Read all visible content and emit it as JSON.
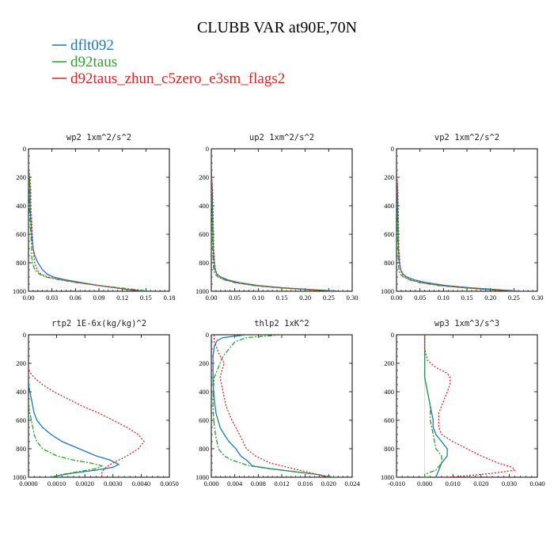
{
  "title": "CLUBB VAR at90E,70N",
  "colors": {
    "dflt092": "#1f77b4",
    "d92taus": "#2ca02c",
    "d92taus_zhun_c5zero_e3sm_flags2": "#d62728"
  },
  "legend": [
    {
      "label": "dflt092",
      "color": "#1f77b4",
      "dash": "solid"
    },
    {
      "label": "d92taus",
      "color": "#2ca02c",
      "dash": "dashed"
    },
    {
      "label": "d92taus_zhun_c5zero_e3sm_flags2",
      "color": "#d62728",
      "dash": "dotted"
    }
  ],
  "chart_data": [
    {
      "type": "line",
      "title": "wp2  1xm^2/s^2",
      "xlim": [
        0,
        0.18
      ],
      "ylim": [
        1000,
        0
      ],
      "xticks": [
        "0.00",
        "0.03",
        "0.06",
        "0.09",
        "0.12",
        "0.15",
        "0.18"
      ],
      "yticks": [
        "0",
        "200",
        "400",
        "600",
        "800",
        "1000"
      ],
      "series": [
        {
          "name": "dflt092",
          "y": [
            150,
            200,
            300,
            400,
            500,
            600,
            700,
            750,
            800,
            850,
            880,
            900,
            920,
            940,
            960,
            975,
            990,
            1000
          ],
          "x": [
            0.0,
            0.001,
            0.002,
            0.002,
            0.003,
            0.004,
            0.006,
            0.008,
            0.012,
            0.018,
            0.024,
            0.032,
            0.048,
            0.068,
            0.09,
            0.11,
            0.13,
            0.15
          ]
        },
        {
          "name": "d92taus",
          "y": [
            150,
            200,
            300,
            400,
            500,
            600,
            700,
            750,
            800,
            850,
            880,
            900,
            920,
            940,
            960,
            975,
            990,
            1000
          ],
          "x": [
            0.0,
            0.0,
            0.001,
            0.001,
            0.002,
            0.003,
            0.004,
            0.004,
            0.005,
            0.008,
            0.014,
            0.022,
            0.04,
            0.062,
            0.09,
            0.115,
            0.14,
            0.155
          ]
        },
        {
          "name": "d92taus_zhun_c5zero_e3sm_flags2",
          "y": [
            150,
            200,
            300,
            400,
            500,
            600,
            700,
            750,
            800,
            850,
            880,
            900,
            920,
            940,
            960,
            975,
            990,
            1000
          ],
          "x": [
            0.0,
            0.002,
            0.003,
            0.003,
            0.004,
            0.005,
            0.006,
            0.007,
            0.008,
            0.011,
            0.016,
            0.025,
            0.042,
            0.065,
            0.09,
            0.11,
            0.13,
            0.145
          ]
        }
      ]
    },
    {
      "type": "line",
      "title": "up2  1xm^2/s^2",
      "xlim": [
        0,
        0.3
      ],
      "ylim": [
        1000,
        0
      ],
      "xticks": [
        "0.00",
        "0.05",
        "0.10",
        "0.15",
        "0.20",
        "0.25",
        "0.30"
      ],
      "yticks": [
        "0",
        "200",
        "400",
        "600",
        "800",
        "1000"
      ],
      "series": [
        {
          "name": "dflt092",
          "y": [
            150,
            300,
            500,
            700,
            800,
            850,
            880,
            900,
            920,
            940,
            960,
            975,
            990,
            1000
          ],
          "x": [
            0.0,
            0.002,
            0.003,
            0.004,
            0.006,
            0.008,
            0.012,
            0.02,
            0.035,
            0.06,
            0.1,
            0.15,
            0.22,
            0.28
          ]
        },
        {
          "name": "d92taus",
          "y": [
            150,
            300,
            500,
            700,
            800,
            850,
            880,
            900,
            920,
            940,
            960,
            975,
            990,
            1000
          ],
          "x": [
            0.0,
            0.001,
            0.002,
            0.003,
            0.004,
            0.005,
            0.008,
            0.014,
            0.028,
            0.05,
            0.09,
            0.14,
            0.21,
            0.27
          ]
        },
        {
          "name": "d92taus_zhun_c5zero_e3sm_flags2",
          "y": [
            150,
            300,
            500,
            700,
            800,
            850,
            880,
            900,
            920,
            940,
            960,
            975,
            990,
            1000
          ],
          "x": [
            0.0,
            0.003,
            0.004,
            0.005,
            0.007,
            0.009,
            0.012,
            0.018,
            0.03,
            0.055,
            0.095,
            0.145,
            0.21,
            0.27
          ]
        }
      ]
    },
    {
      "type": "line",
      "title": "vp2  1xm^2/s^2",
      "xlim": [
        0,
        0.3
      ],
      "ylim": [
        1000,
        0
      ],
      "xticks": [
        "0.00",
        "0.05",
        "0.10",
        "0.15",
        "0.20",
        "0.25",
        "0.30"
      ],
      "yticks": [
        "0",
        "200",
        "400",
        "600",
        "800",
        "1000"
      ],
      "series": [
        {
          "name": "dflt092",
          "y": [
            150,
            300,
            500,
            700,
            800,
            850,
            880,
            900,
            920,
            940,
            960,
            975,
            990,
            1000
          ],
          "x": [
            0.0,
            0.002,
            0.003,
            0.004,
            0.006,
            0.009,
            0.014,
            0.022,
            0.038,
            0.065,
            0.105,
            0.155,
            0.22,
            0.27
          ]
        },
        {
          "name": "d92taus",
          "y": [
            150,
            300,
            500,
            700,
            800,
            850,
            880,
            900,
            920,
            940,
            960,
            975,
            990,
            1000
          ],
          "x": [
            0.0,
            0.001,
            0.002,
            0.003,
            0.004,
            0.005,
            0.008,
            0.014,
            0.028,
            0.05,
            0.09,
            0.14,
            0.2,
            0.26
          ]
        },
        {
          "name": "d92taus_zhun_c5zero_e3sm_flags2",
          "y": [
            150,
            300,
            500,
            700,
            800,
            850,
            880,
            900,
            920,
            940,
            960,
            975,
            990,
            1000
          ],
          "x": [
            0.0,
            0.003,
            0.004,
            0.005,
            0.007,
            0.009,
            0.012,
            0.018,
            0.03,
            0.055,
            0.095,
            0.145,
            0.205,
            0.26
          ]
        }
      ]
    },
    {
      "type": "line",
      "title": "rtp2  1E-6x(kg/kg)^2",
      "xlim": [
        0,
        0.005
      ],
      "ylim": [
        1000,
        0
      ],
      "xticks": [
        "0.0000",
        "0.0010",
        "0.0020",
        "0.0030",
        "0.0040",
        "0.0050"
      ],
      "yticks": [
        "0",
        "200",
        "400",
        "600",
        "800",
        "1000"
      ],
      "series": [
        {
          "name": "dflt092",
          "y": [
            350,
            450,
            550,
            600,
            650,
            700,
            750,
            800,
            850,
            880,
            910,
            930,
            950,
            970,
            990,
            1000
          ],
          "x": [
            0.0,
            0.0001,
            0.0002,
            0.0003,
            0.0005,
            0.0008,
            0.0012,
            0.0018,
            0.0024,
            0.0029,
            0.0032,
            0.003,
            0.0024,
            0.0016,
            0.001,
            0.0008
          ]
        },
        {
          "name": "d92taus",
          "y": [
            500,
            600,
            700,
            750,
            800,
            850,
            880,
            900,
            920,
            940,
            960,
            980,
            1000
          ],
          "x": [
            0.0,
            0.0001,
            0.0002,
            0.0003,
            0.0005,
            0.001,
            0.0016,
            0.0022,
            0.0026,
            0.0024,
            0.0018,
            0.0012,
            0.0008
          ]
        },
        {
          "name": "d92taus_zhun_c5zero_e3sm_flags2",
          "y": [
            250,
            300,
            350,
            400,
            450,
            500,
            550,
            600,
            650,
            700,
            750,
            800,
            850,
            880,
            910,
            940,
            970,
            1000
          ],
          "x": [
            0.0,
            0.0002,
            0.0005,
            0.0009,
            0.0014,
            0.0019,
            0.0025,
            0.003,
            0.0035,
            0.0039,
            0.0041,
            0.0039,
            0.0035,
            0.0032,
            0.0029,
            0.0027,
            0.0026,
            0.0026
          ]
        }
      ]
    },
    {
      "type": "line",
      "title": "thlp2  1xK^2",
      "xlim": [
        0,
        0.024
      ],
      "ylim": [
        1000,
        0
      ],
      "xticks": [
        "0.000",
        "0.004",
        "0.008",
        "0.012",
        "0.016",
        "0.020",
        "0.024"
      ],
      "yticks": [
        "0",
        "200",
        "400",
        "600",
        "800",
        "1000"
      ],
      "series": [
        {
          "name": "dflt092",
          "y": [
            0,
            20,
            40,
            80,
            150,
            250,
            350,
            450,
            550,
            650,
            700,
            750,
            800,
            850,
            880,
            900,
            920,
            940,
            960,
            980,
            1000
          ],
          "x": [
            0.006,
            0.002,
            0.001,
            0.0005,
            0.0003,
            0.0003,
            0.0003,
            0.0005,
            0.0008,
            0.0015,
            0.0022,
            0.003,
            0.0042,
            0.005,
            0.006,
            0.0065,
            0.007,
            0.01,
            0.014,
            0.018,
            0.02
          ]
        },
        {
          "name": "d92taus",
          "y": [
            0,
            20,
            50,
            100,
            150,
            200,
            300,
            400,
            500,
            600,
            700,
            800,
            850,
            880,
            900,
            920,
            940,
            960,
            980,
            1000
          ],
          "x": [
            0.012,
            0.006,
            0.004,
            0.003,
            0.002,
            0.0015,
            0.0005,
            0.0003,
            0.0003,
            0.0004,
            0.0007,
            0.0012,
            0.0022,
            0.0035,
            0.005,
            0.0065,
            0.01,
            0.014,
            0.018,
            0.021
          ]
        },
        {
          "name": "d92taus_zhun_c5zero_e3sm_flags2",
          "y": [
            0,
            50,
            100,
            150,
            200,
            250,
            300,
            400,
            500,
            600,
            700,
            800,
            850,
            880,
            900,
            920,
            940,
            960,
            980,
            1000
          ],
          "x": [
            0.0005,
            0.0005,
            0.001,
            0.0015,
            0.0022,
            0.0018,
            0.0015,
            0.002,
            0.0025,
            0.0035,
            0.0048,
            0.006,
            0.0075,
            0.009,
            0.01,
            0.012,
            0.014,
            0.016,
            0.018,
            0.02
          ]
        }
      ]
    },
    {
      "type": "line",
      "title": "wp3  1xm^3/s^3",
      "xlim": [
        -0.01,
        0.04
      ],
      "ylim": [
        1000,
        0
      ],
      "xticks": [
        "-0.010",
        "0.000",
        "0.010",
        "0.020",
        "0.030",
        "0.040"
      ],
      "yticks": [
        "0",
        "200",
        "400",
        "600",
        "800",
        "1000"
      ],
      "series": [
        {
          "name": "dflt092",
          "y": [
            0,
            100,
            200,
            300,
            400,
            500,
            600,
            650,
            700,
            750,
            800,
            850,
            900,
            950,
            1000
          ],
          "x": [
            0.0,
            0.0,
            0.0,
            0.0,
            0.001,
            0.002,
            0.003,
            0.003,
            0.004,
            0.006,
            0.008,
            0.008,
            0.006,
            0.005,
            0.004
          ]
        },
        {
          "name": "d92taus",
          "y": [
            0,
            100,
            200,
            300,
            400,
            500,
            600,
            700,
            800,
            850,
            900,
            950,
            980,
            1000
          ],
          "x": [
            0.0,
            0.0,
            0.0,
            0.0,
            0.001,
            0.002,
            0.002,
            0.003,
            0.004,
            0.006,
            0.006,
            0.004,
            0.0,
            0.0
          ]
        },
        {
          "name": "d92taus_zhun_c5zero_e3sm_flags2",
          "y": [
            0,
            100,
            180,
            230,
            270,
            300,
            350,
            400,
            450,
            500,
            550,
            600,
            650,
            700,
            750,
            800,
            850,
            900,
            930,
            950,
            970,
            990,
            1000
          ],
          "x": [
            0.0,
            0.0,
            0.001,
            0.004,
            0.008,
            0.009,
            0.009,
            0.008,
            0.007,
            0.006,
            0.005,
            0.005,
            0.005,
            0.006,
            0.01,
            0.015,
            0.02,
            0.026,
            0.031,
            0.032,
            0.025,
            0.015,
            0.008
          ]
        }
      ]
    }
  ]
}
